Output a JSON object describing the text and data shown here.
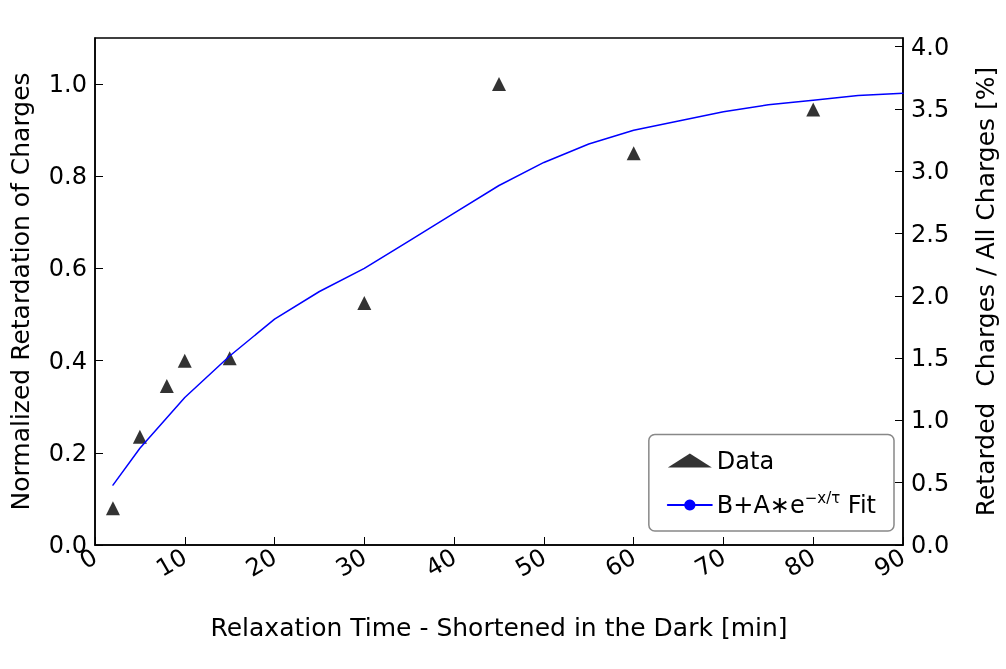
{
  "chart_data": {
    "type": "scatter",
    "xlabel": "Relaxation Time - Shortened in the Dark [min]",
    "ylabel": "Normalized Retardation of Charges",
    "y2label": "Retarded  Charges / All Charges [%]",
    "xlim": [
      0,
      90
    ],
    "xticks": [
      0,
      10,
      20,
      30,
      40,
      50,
      60,
      70,
      80,
      90
    ],
    "ylim": [
      0,
      1.1
    ],
    "yticks": [
      {
        "value": 0,
        "label": "0.0"
      },
      {
        "value": 0.2,
        "label": "0.2"
      },
      {
        "value": 0.4,
        "label": "0.4"
      },
      {
        "value": 0.6,
        "label": "0.6"
      },
      {
        "value": 0.8,
        "label": "0.8"
      },
      {
        "value": 1,
        "label": "1.0"
      }
    ],
    "y2lim": [
      0,
      4.07
    ],
    "y2ticks": [
      {
        "value": 0,
        "label": "0.0"
      },
      {
        "value": 0.5,
        "label": "0.5"
      },
      {
        "value": 1,
        "label": "1.0"
      },
      {
        "value": 1.5,
        "label": "1.5"
      },
      {
        "value": 2,
        "label": "2.0"
      },
      {
        "value": 2.5,
        "label": "2.5"
      },
      {
        "value": 3,
        "label": "3.0"
      },
      {
        "value": 3.5,
        "label": "3.5"
      },
      {
        "value": 4,
        "label": "4.0"
      }
    ],
    "grid": false,
    "legend": "bottom right",
    "series": [
      {
        "name": "Data",
        "marker": "triangle",
        "color": "#000000",
        "x": [
          2,
          5,
          8,
          10,
          15,
          30,
          45,
          60,
          80
        ],
        "values": [
          0.08,
          0.235,
          0.345,
          0.4,
          0.405,
          0.525,
          1.0,
          0.85,
          0.945
        ]
      },
      {
        "name": "B+A∗e$^{−x/τ}$ Fit",
        "type": "line",
        "marker": "none",
        "line_style": "solid",
        "color": "#0000ff",
        "x": [
          2,
          5,
          10,
          15,
          20,
          25,
          30,
          35,
          40,
          45,
          50,
          55,
          60,
          65,
          70,
          75,
          80,
          85,
          90
        ],
        "values": [
          0.13,
          0.21,
          0.32,
          0.41,
          0.49,
          0.55,
          0.6,
          0.66,
          0.72,
          0.78,
          0.83,
          0.87,
          0.9,
          0.92,
          0.94,
          0.955,
          0.965,
          0.975,
          0.98
        ]
      }
    ]
  }
}
